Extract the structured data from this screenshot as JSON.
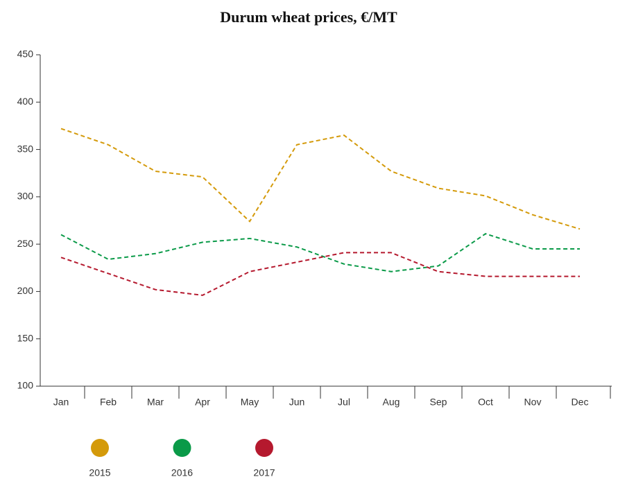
{
  "chart_data": {
    "type": "line",
    "title": "Durum wheat prices, €/MT",
    "categories": [
      "Jan",
      "Feb",
      "Mar",
      "Apr",
      "May",
      "Jun",
      "Jul",
      "Aug",
      "Sep",
      "Oct",
      "Nov",
      "Dec"
    ],
    "series": [
      {
        "name": "2015",
        "color": "#d49a0a",
        "values": [
          372,
          355,
          327,
          321,
          274,
          355,
          365,
          327,
          309,
          301,
          281,
          266
        ]
      },
      {
        "name": "2016",
        "color": "#0a9a48",
        "values": [
          260,
          234,
          240,
          252,
          256,
          247,
          229,
          221,
          227,
          261,
          245,
          245
        ]
      },
      {
        "name": "2017",
        "color": "#b5192e",
        "values": [
          236,
          219,
          202,
          196,
          221,
          231,
          241,
          241,
          221,
          216,
          216,
          216
        ]
      }
    ],
    "ylim": [
      100,
      450
    ],
    "yticks": [
      100,
      150,
      200,
      250,
      300,
      350,
      400,
      450
    ],
    "grid": false,
    "dashed": true,
    "legend": "bottom-left"
  }
}
